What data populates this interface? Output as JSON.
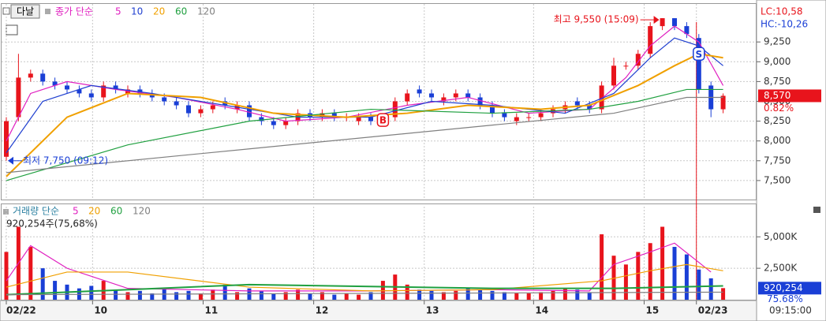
{
  "symbol": "다날",
  "limits": [
    "LC:10,58",
    "HC:-10,26"
  ],
  "cursor_time": "09:15:00",
  "chart_data": [
    {
      "type": "candlestick",
      "legend_title": "종가 단순",
      "up_color": "#e8141c",
      "down_color": "#1a3fd6",
      "open": [
        7800,
        8300,
        8800,
        8850,
        8750,
        8700,
        8650,
        8600,
        8550,
        8700,
        8600,
        8650,
        8600,
        8550,
        8500,
        8450,
        8350,
        8400,
        8500,
        8400,
        8450,
        8300,
        8250,
        8200,
        8250,
        8350,
        8300,
        8350,
        8300,
        8250,
        8300,
        8250,
        8300,
        8500,
        8650,
        8600,
        8500,
        8550,
        8600,
        8550,
        8450,
        8350,
        8250,
        8300,
        8300,
        8350,
        8400,
        8500,
        8450,
        8400,
        8700,
        8950,
        8950,
        9100,
        9450,
        9550,
        9450,
        9300,
        8700,
        8400
      ],
      "high": [
        8300,
        9100,
        8900,
        8900,
        8800,
        8750,
        8700,
        8650,
        8750,
        8750,
        8700,
        8700,
        8650,
        8600,
        8550,
        8500,
        8450,
        8500,
        8550,
        8500,
        8500,
        8350,
        8300,
        8300,
        8400,
        8400,
        8400,
        8400,
        8350,
        8350,
        8350,
        8350,
        8550,
        8650,
        8700,
        8650,
        8600,
        8650,
        8650,
        8600,
        8500,
        8400,
        8350,
        8350,
        8400,
        8450,
        8500,
        8550,
        8500,
        8750,
        9050,
        9000,
        9150,
        9500,
        9550,
        9550,
        9500,
        9350,
        8750,
        8600
      ],
      "low": [
        7750,
        8250,
        8750,
        8700,
        8650,
        8600,
        8550,
        8500,
        8500,
        8600,
        8550,
        8550,
        8500,
        8450,
        8400,
        8300,
        8300,
        8350,
        8400,
        8350,
        8250,
        8200,
        8150,
        8150,
        8200,
        8250,
        8250,
        8250,
        8250,
        8200,
        8200,
        8200,
        8250,
        8450,
        8550,
        8500,
        8450,
        8500,
        8500,
        8400,
        8300,
        8250,
        8200,
        8250,
        8250,
        8300,
        8350,
        8400,
        8350,
        8350,
        8650,
        8900,
        8900,
        9050,
        9400,
        9400,
        9300,
        8600,
        8300,
        8350
      ],
      "close": [
        8250,
        8800,
        8850,
        8750,
        8700,
        8650,
        8600,
        8550,
        8700,
        8650,
        8650,
        8600,
        8550,
        8500,
        8450,
        8350,
        8400,
        8450,
        8450,
        8450,
        8300,
        8250,
        8200,
        8250,
        8350,
        8300,
        8350,
        8300,
        8300,
        8300,
        8250,
        8300,
        8500,
        8600,
        8600,
        8550,
        8550,
        8600,
        8550,
        8450,
        8350,
        8300,
        8300,
        8300,
        8350,
        8400,
        8450,
        8450,
        8400,
        8700,
        8950,
        8950,
        9100,
        9450,
        9550,
        9450,
        9350,
        8650,
        8400,
        8570
      ],
      "series": [
        {
          "name": "5",
          "color": "#e020c0",
          "x": [
            0,
            2,
            5,
            9,
            14,
            19,
            23,
            28,
            33,
            38,
            43,
            48,
            51,
            53,
            55,
            57,
            59
          ],
          "values": [
            8000,
            8600,
            8750,
            8650,
            8550,
            8400,
            8250,
            8300,
            8450,
            8550,
            8350,
            8400,
            8800,
            9200,
            9450,
            9250,
            8700
          ]
        },
        {
          "name": "10",
          "color": "#2040d0",
          "x": [
            0,
            3,
            7,
            12,
            18,
            24,
            30,
            35,
            40,
            46,
            50,
            53,
            55,
            57,
            59
          ],
          "values": [
            7850,
            8500,
            8700,
            8600,
            8450,
            8300,
            8300,
            8500,
            8450,
            8350,
            8600,
            9050,
            9300,
            9200,
            8950
          ]
        },
        {
          "name": "20",
          "color": "#f0a000",
          "x": [
            0,
            5,
            10,
            16,
            22,
            28,
            33,
            38,
            44,
            48,
            52,
            55,
            57,
            59
          ],
          "values": [
            7550,
            8300,
            8600,
            8550,
            8350,
            8300,
            8350,
            8450,
            8400,
            8450,
            8700,
            8950,
            9100,
            9050
          ]
        },
        {
          "name": "60",
          "color": "#20a040",
          "x": [
            0,
            10,
            20,
            30,
            40,
            48,
            52,
            56,
            59
          ],
          "values": [
            7500,
            7950,
            8250,
            8400,
            8350,
            8400,
            8500,
            8650,
            8650
          ]
        },
        {
          "name": "120",
          "color": "#808080",
          "x": [
            0,
            20,
            40,
            50,
            56,
            59
          ],
          "values": [
            7600,
            7900,
            8200,
            8350,
            8550,
            8550
          ]
        }
      ],
      "ylim": [
        7270,
        9730
      ],
      "yticks": [
        {
          "value": 7500,
          "label": "7,500"
        },
        {
          "value": 7750,
          "label": "7,750"
        },
        {
          "value": 8000,
          "label": "8,000"
        },
        {
          "value": 8250,
          "label": "8,250"
        },
        {
          "value": 8500,
          "label": "8,500"
        },
        {
          "value": 8750,
          "label": "8,750"
        },
        {
          "value": 9000,
          "label": "9,000"
        },
        {
          "value": 9250,
          "label": "9,250"
        }
      ],
      "annotations": [
        {
          "label": "최고 9,550 (15:09)",
          "index": 54,
          "value": 9550
        },
        {
          "label": "최저 7,750 (09:12)",
          "index": 0,
          "value": 7750
        }
      ],
      "signals": [
        {
          "label": "B",
          "index": 31,
          "value": 8265
        },
        {
          "label": "S",
          "index": 57,
          "value": 9100
        }
      ],
      "last_price": {
        "value": 8570,
        "label": "8,570"
      },
      "change": {
        "value": 0.82,
        "label": "0.82%"
      }
    },
    {
      "type": "bar",
      "legend_title": "거래량 단순",
      "info": "920,254주(75,68%)",
      "values": [
        3800,
        5800,
        4200,
        2500,
        1500,
        1200,
        900,
        1100,
        1500,
        800,
        600,
        700,
        500,
        900,
        600,
        700,
        500,
        800,
        1200,
        600,
        900,
        700,
        500,
        600,
        800,
        500,
        600,
        400,
        500,
        400,
        600,
        1500,
        2000,
        1200,
        800,
        700,
        600,
        700,
        900,
        800,
        700,
        600,
        500,
        500,
        600,
        700,
        900,
        800,
        600,
        5200,
        3500,
        2800,
        3800,
        4500,
        5800,
        4200,
        3600,
        2400,
        1700,
        920
      ],
      "series": [
        {
          "name": "5",
          "color": "#e020c0",
          "x": [
            0,
            2,
            5,
            10,
            20,
            30,
            40,
            48,
            50,
            53,
            55,
            58
          ],
          "values": [
            1500,
            4300,
            2500,
            900,
            700,
            700,
            800,
            700,
            2800,
            3800,
            4500,
            2200
          ]
        },
        {
          "name": "20",
          "color": "#f0a000",
          "x": [
            0,
            5,
            10,
            20,
            30,
            40,
            49,
            53,
            56,
            59
          ],
          "values": [
            1000,
            2200,
            2200,
            1000,
            700,
            800,
            1500,
            2300,
            2800,
            2300
          ]
        },
        {
          "name": "60",
          "color": "#20a040",
          "x": [
            0,
            20,
            40,
            50,
            59
          ],
          "values": [
            400,
            1200,
            900,
            900,
            1100
          ]
        },
        {
          "name": "120",
          "color": "#808080",
          "x": [
            0,
            59
          ],
          "values": [
            400,
            600
          ]
        }
      ],
      "ylim": [
        0,
        7400
      ],
      "yticks": [
        {
          "value": 2500,
          "label": "2,500K"
        },
        {
          "value": 5000,
          "label": "5,000K"
        }
      ],
      "last_volume": {
        "value": 920.254,
        "label": "920,254"
      },
      "ratio": {
        "value": 75.68,
        "label": "75.68%"
      },
      "xticks": [
        {
          "value": 0,
          "label": "02/22"
        },
        {
          "value": 7.1,
          "label": "10"
        },
        {
          "value": 16.2,
          "label": "11"
        },
        {
          "value": 25.3,
          "label": "12"
        },
        {
          "value": 34.4,
          "label": "13"
        },
        {
          "value": 43.4,
          "label": "14"
        },
        {
          "value": 52.5,
          "label": "15"
        },
        {
          "value": 56.8,
          "label": "02/23"
        }
      ]
    }
  ]
}
